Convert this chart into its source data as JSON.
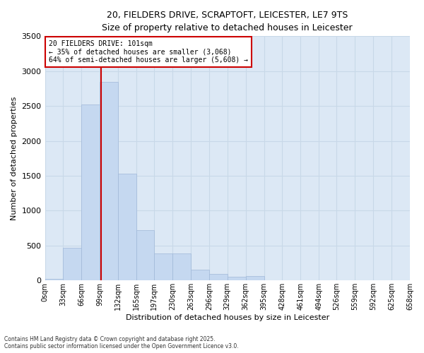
{
  "title_line1": "20, FIELDERS DRIVE, SCRAPTOFT, LEICESTER, LE7 9TS",
  "title_line2": "Size of property relative to detached houses in Leicester",
  "xlabel": "Distribution of detached houses by size in Leicester",
  "ylabel": "Number of detached properties",
  "annotation_line1": "20 FIELDERS DRIVE: 101sqm",
  "annotation_line2": "← 35% of detached houses are smaller (3,068)",
  "annotation_line3": "64% of semi-detached houses are larger (5,608) →",
  "property_size_sqm": 101,
  "bin_edges": [
    0,
    33,
    66,
    99,
    132,
    165,
    197,
    230,
    263,
    296,
    329,
    362,
    395,
    428,
    461,
    494,
    526,
    559,
    592,
    625,
    658
  ],
  "bar_heights": [
    20,
    470,
    2520,
    2850,
    1530,
    720,
    390,
    390,
    155,
    90,
    50,
    60,
    0,
    0,
    0,
    0,
    0,
    0,
    0,
    0
  ],
  "bar_color": "#c5d8f0",
  "bar_edge_color": "#a0b8d8",
  "vline_color": "#cc0000",
  "vline_x": 101,
  "ylim": [
    0,
    3500
  ],
  "yticks": [
    0,
    500,
    1000,
    1500,
    2000,
    2500,
    3000,
    3500
  ],
  "grid_color": "#c8d8e8",
  "background_color": "#dce8f5",
  "footer_line1": "Contains HM Land Registry data © Crown copyright and database right 2025.",
  "footer_line2": "Contains public sector information licensed under the Open Government Licence v3.0."
}
